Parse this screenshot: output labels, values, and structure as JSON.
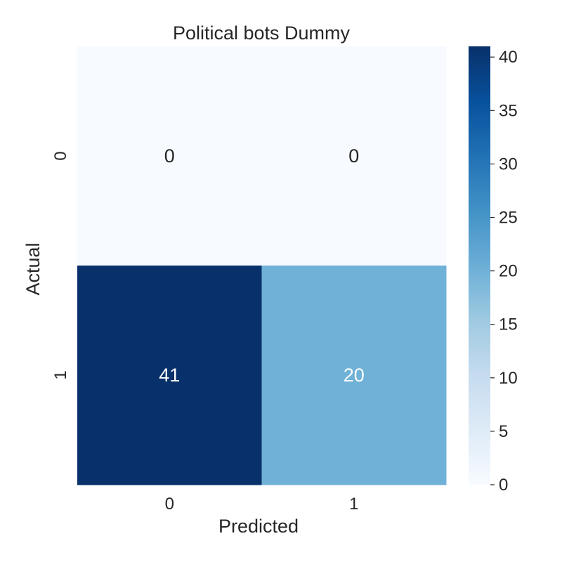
{
  "chart_data": {
    "type": "heatmap",
    "title": "Political bots Dummy",
    "xlabel": "Predicted",
    "ylabel": "Actual",
    "x_categories": [
      "0",
      "1"
    ],
    "y_categories": [
      "0",
      "1"
    ],
    "values": [
      [
        0,
        0
      ],
      [
        41,
        20
      ]
    ],
    "colorbar": {
      "min": 0,
      "max": 41,
      "ticks": [
        0,
        5,
        10,
        15,
        20,
        25,
        30,
        35,
        40
      ],
      "colormap": "Blues"
    }
  }
}
